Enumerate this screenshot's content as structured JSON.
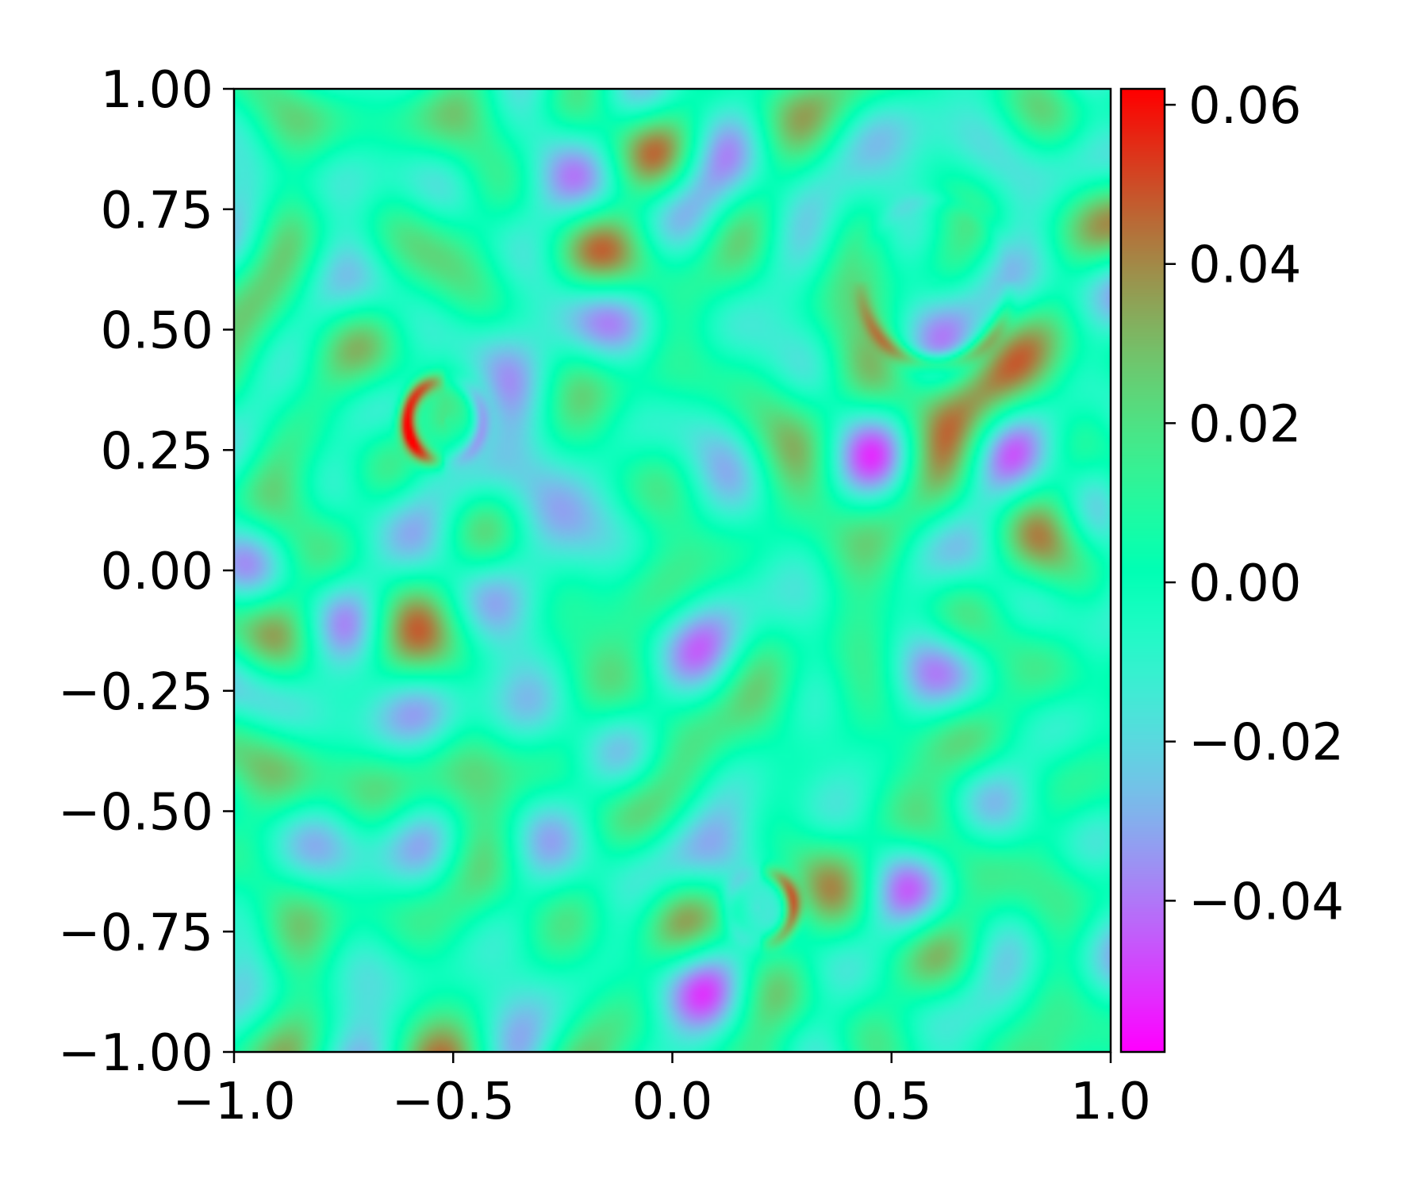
{
  "chart_data": {
    "type": "heatmap",
    "title": "",
    "xlabel": "",
    "ylabel": "",
    "xlim": [
      -1.0,
      1.0
    ],
    "ylim": [
      -1.0,
      1.0
    ],
    "x_ticks": [
      {
        "value": -1.0,
        "label": "−1.0"
      },
      {
        "value": -0.5,
        "label": "−0.5"
      },
      {
        "value": 0.0,
        "label": "0.0"
      },
      {
        "value": 0.5,
        "label": "0.5"
      },
      {
        "value": 1.0,
        "label": "1.0"
      }
    ],
    "y_ticks": [
      {
        "value": 1.0,
        "label": "1.00"
      },
      {
        "value": 0.75,
        "label": "0.75"
      },
      {
        "value": 0.5,
        "label": "0.50"
      },
      {
        "value": 0.25,
        "label": "0.25"
      },
      {
        "value": 0.0,
        "label": "0.00"
      },
      {
        "value": -0.25,
        "label": "−0.25"
      },
      {
        "value": -0.5,
        "label": "−0.50"
      },
      {
        "value": -0.75,
        "label": "−0.75"
      },
      {
        "value": -1.0,
        "label": "−1.00"
      }
    ],
    "colorbar": {
      "colormap": "rainbow",
      "vmin": -0.059,
      "vmax": 0.062,
      "ticks": [
        {
          "value": 0.06,
          "label": "0.06"
        },
        {
          "value": 0.04,
          "label": "0.04"
        },
        {
          "value": 0.02,
          "label": "0.02"
        },
        {
          "value": 0.0,
          "label": "0.00"
        },
        {
          "value": -0.02,
          "label": "−0.02"
        },
        {
          "value": -0.04,
          "label": "−0.04"
        }
      ]
    },
    "features": [
      {
        "kind": "ring",
        "center": [
          -0.52,
          0.31
        ],
        "radius": 0.085,
        "positive_side": "left",
        "peak": 0.062,
        "trough": -0.055
      },
      {
        "kind": "ring",
        "center": [
          0.2,
          -0.7
        ],
        "radius": 0.075,
        "positive_side": "right",
        "peak": 0.045,
        "trough": -0.03
      },
      {
        "kind": "ring",
        "center": [
          0.6,
          0.6
        ],
        "radius": 0.17,
        "positive_side": "bottom",
        "peak": 0.03,
        "trough": -0.015
      }
    ]
  }
}
